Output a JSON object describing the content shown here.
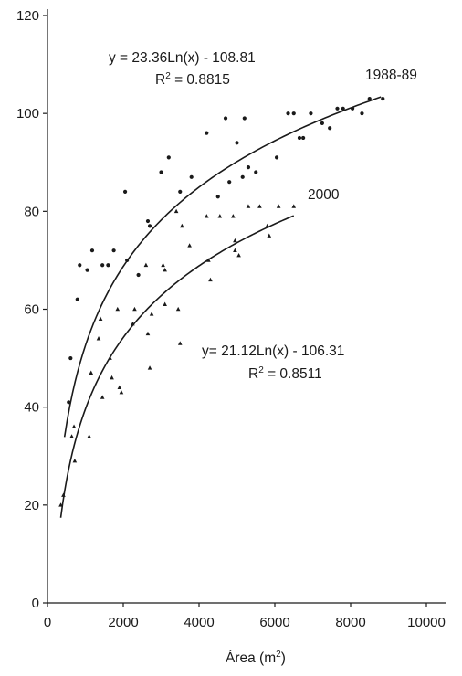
{
  "chart_data": {
    "type": "scatter",
    "title": "",
    "xlabel_main": "Área (m",
    "xlabel_sup": "2",
    "xlabel_close": ")",
    "ylabel": "",
    "xlim": [
      0,
      10000
    ],
    "ylim": [
      0,
      120
    ],
    "x_ticks": [
      0,
      2000,
      4000,
      6000,
      8000,
      10000
    ],
    "y_ticks": [
      0,
      20,
      40,
      60,
      80,
      100,
      120
    ],
    "grid": false,
    "legend": "none",
    "series": [
      {
        "name": "1988-89",
        "marker": "circle",
        "points": [
          [
            560,
            41
          ],
          [
            610,
            50
          ],
          [
            790,
            62
          ],
          [
            850,
            69
          ],
          [
            1050,
            68
          ],
          [
            1180,
            72
          ],
          [
            1450,
            69
          ],
          [
            1600,
            69
          ],
          [
            1750,
            72
          ],
          [
            2050,
            84
          ],
          [
            2100,
            70
          ],
          [
            2400,
            67
          ],
          [
            2650,
            78
          ],
          [
            2700,
            77
          ],
          [
            3000,
            88
          ],
          [
            3200,
            91
          ],
          [
            3500,
            84
          ],
          [
            3800,
            87
          ],
          [
            4200,
            96
          ],
          [
            4500,
            83
          ],
          [
            4700,
            99
          ],
          [
            4800,
            86
          ],
          [
            5000,
            94
          ],
          [
            5200,
            99
          ],
          [
            5150,
            87
          ],
          [
            5300,
            89
          ],
          [
            5500,
            88
          ],
          [
            6050,
            91
          ],
          [
            6350,
            100
          ],
          [
            6500,
            100
          ],
          [
            6650,
            95
          ],
          [
            6750,
            95
          ],
          [
            6950,
            100
          ],
          [
            7250,
            98
          ],
          [
            7450,
            97
          ],
          [
            7650,
            101
          ],
          [
            7800,
            101
          ],
          [
            8050,
            101
          ],
          [
            8300,
            100
          ],
          [
            8500,
            103
          ],
          [
            8850,
            103
          ]
        ],
        "fit": {
          "equation": "y = 23.36Ln(x) - 108.81",
          "r2_prefix": "R",
          "r2_sup": "2",
          "r2_value": " = 0.8815",
          "a": 23.36,
          "b": -108.81,
          "x_range": [
            450,
            8800
          ],
          "label": "1988-89"
        }
      },
      {
        "name": "2000",
        "marker": "triangle",
        "points": [
          [
            350,
            20
          ],
          [
            420,
            22
          ],
          [
            640,
            34
          ],
          [
            700,
            36
          ],
          [
            720,
            29
          ],
          [
            1100,
            34
          ],
          [
            1150,
            47
          ],
          [
            1350,
            54
          ],
          [
            1400,
            58
          ],
          [
            1450,
            42
          ],
          [
            1650,
            50
          ],
          [
            1700,
            46
          ],
          [
            1850,
            60
          ],
          [
            1900,
            44
          ],
          [
            1950,
            43
          ],
          [
            2250,
            57
          ],
          [
            2300,
            60
          ],
          [
            2600,
            69
          ],
          [
            2650,
            55
          ],
          [
            2700,
            48
          ],
          [
            2750,
            59
          ],
          [
            3050,
            69
          ],
          [
            3100,
            61
          ],
          [
            3100,
            68
          ],
          [
            3400,
            80
          ],
          [
            3450,
            60
          ],
          [
            3500,
            53
          ],
          [
            3550,
            77
          ],
          [
            3750,
            73
          ],
          [
            4200,
            79
          ],
          [
            4250,
            70
          ],
          [
            4300,
            66
          ],
          [
            4550,
            79
          ],
          [
            4900,
            79
          ],
          [
            4950,
            74
          ],
          [
            4950,
            72
          ],
          [
            5050,
            71
          ],
          [
            5300,
            81
          ],
          [
            5600,
            81
          ],
          [
            5800,
            77
          ],
          [
            5850,
            75
          ],
          [
            6100,
            81
          ],
          [
            6500,
            81
          ]
        ],
        "fit": {
          "equation": "y= 21.12Ln(x) - 106.31",
          "r2_prefix": "R",
          "r2_sup": "2",
          "r2_value": " = 0.8511",
          "a": 21.12,
          "b": -106.31,
          "x_range": [
            350,
            6500
          ],
          "label": "2000"
        }
      }
    ]
  }
}
